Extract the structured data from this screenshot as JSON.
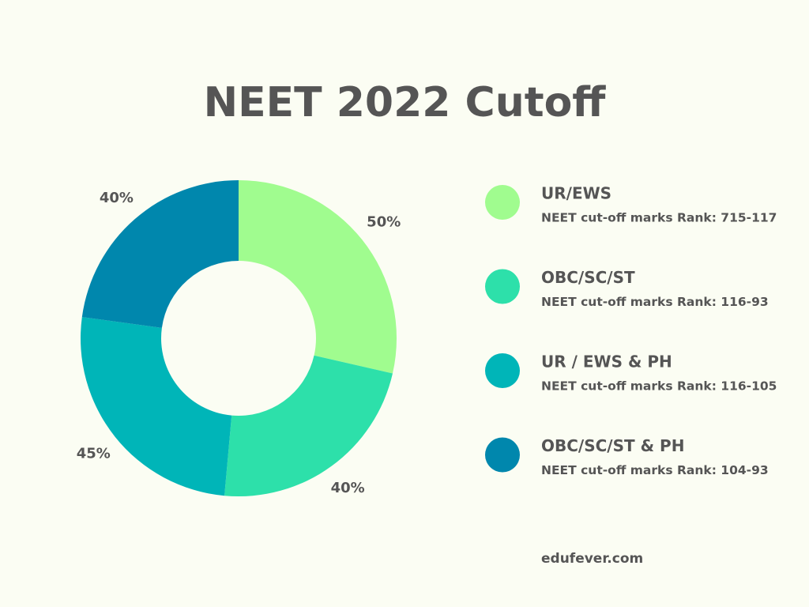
{
  "chart_data": {
    "type": "pie",
    "title": "NEET 2022 Cutoff",
    "categories": [
      "UR/EWS",
      "OBC/SC/ST",
      "UR / EWS & PH",
      "OBC/SC/ST & PH"
    ],
    "category_details": [
      "NEET cut-off marks Rank:  715-117",
      "NEET cut-off marks Rank:  116-93",
      "NEET cut-off marks Rank:  116-105",
      "NEET cut-off marks Rank:  104-93"
    ],
    "values": [
      50,
      40,
      45,
      40
    ],
    "value_labels": [
      "50%",
      "40%",
      "45%",
      "40%"
    ],
    "colors": [
      "#a0fc8f",
      "#2de0aa",
      "#00b5b8",
      "#0087ad"
    ],
    "legend": "right",
    "source": "edufever.com"
  }
}
